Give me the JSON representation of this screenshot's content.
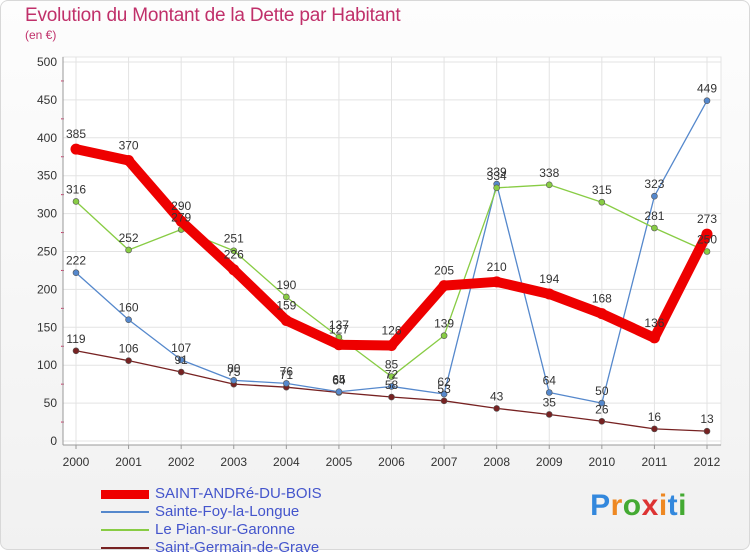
{
  "header": {
    "title": "Evolution du Montant de la Dette par Habitant",
    "subtitle": "(en €)"
  },
  "logo_text": "Proxiti",
  "chart_data": {
    "type": "line",
    "x": [
      "2000",
      "2001",
      "2002",
      "2003",
      "2004",
      "2005",
      "2006",
      "2007",
      "2008",
      "2009",
      "2010",
      "2011",
      "2012"
    ],
    "ylim": [
      0,
      500
    ],
    "yticks": [
      0,
      50,
      100,
      150,
      200,
      250,
      300,
      350,
      400,
      450,
      500
    ],
    "grid": true,
    "legend_position": "bottom-left",
    "series": [
      {
        "name": "SAINT-ANDRé-DU-BOIS",
        "color": "#ee0000",
        "values": [
          385,
          370,
          290,
          226,
          159,
          127,
          126,
          205,
          210,
          194,
          168,
          136,
          273
        ]
      },
      {
        "name": "Sainte-Foy-la-Longue",
        "color": "#5588cc",
        "values": [
          222,
          160,
          107,
          80,
          76,
          65,
          72,
          62,
          339,
          64,
          50,
          323,
          449
        ]
      },
      {
        "name": "Le Pian-sur-Garonne",
        "color": "#88cc44",
        "values": [
          316,
          252,
          279,
          251,
          190,
          137,
          85,
          139,
          334,
          338,
          315,
          281,
          250
        ]
      },
      {
        "name": "Saint-Germain-de-Grave",
        "color": "#772222",
        "values": [
          119,
          106,
          91,
          75,
          71,
          64,
          58,
          53,
          43,
          35,
          26,
          16,
          13
        ]
      }
    ]
  }
}
